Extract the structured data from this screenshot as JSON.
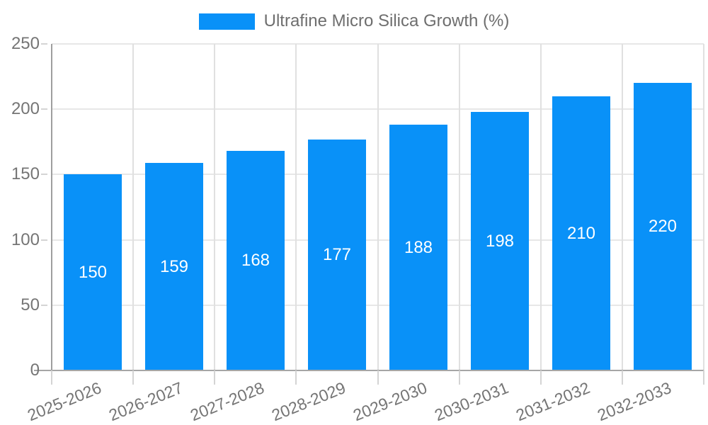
{
  "legend": {
    "label": "Ultrafine Micro Silica Growth (%)"
  },
  "chart_data": {
    "type": "bar",
    "title": "",
    "categories": [
      "2025-2026",
      "2026-2027",
      "2027-2028",
      "2028-2029",
      "2029-2030",
      "2030-2031",
      "2031-2032",
      "2032-2033"
    ],
    "series": [
      {
        "name": "Ultrafine Micro Silica Growth (%)",
        "values": [
          150,
          159,
          168,
          177,
          188,
          198,
          210,
          220
        ]
      }
    ],
    "bar_value_labels": [
      "150",
      "159",
      "168",
      "177",
      "188",
      "198",
      "210",
      "220"
    ],
    "xlabel": "",
    "ylabel": "",
    "y_ticks": [
      0,
      50,
      100,
      150,
      200,
      250
    ],
    "ylim": [
      0,
      250
    ],
    "grid": true,
    "legend_position": "top",
    "colors": {
      "bar": "#0991f8",
      "grid": "#e7e7e7",
      "boundary_grid": "#e0e0e0",
      "axis": "#9e9e9e",
      "baseline": "#a6a6a6",
      "tick": "#d4d4d4",
      "axis_text": "#757575",
      "legend_text": "#6e6e6e",
      "value_label": "#ffffff",
      "background": "#ffffff"
    }
  }
}
